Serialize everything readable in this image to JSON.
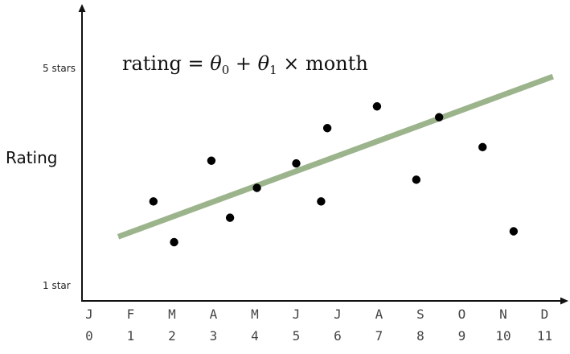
{
  "chart_data": {
    "type": "scatter",
    "title": "",
    "equation": {
      "prefix": "rating = ",
      "theta": "θ",
      "sub0": "0",
      "plus": " + ",
      "sub1": "1",
      "suffix": " × month"
    },
    "ylabel": "Rating",
    "xlabel": "",
    "y_ticks": [
      {
        "label": "1 star",
        "value": 1
      },
      {
        "label": "5 stars",
        "value": 5
      }
    ],
    "x_ticks": [
      {
        "month": "J",
        "index": "0"
      },
      {
        "month": "F",
        "index": "1"
      },
      {
        "month": "M",
        "index": "2"
      },
      {
        "month": "A",
        "index": "3"
      },
      {
        "month": "M",
        "index": "4"
      },
      {
        "month": "J",
        "index": "5"
      },
      {
        "month": "J",
        "index": "6"
      },
      {
        "month": "A",
        "index": "7"
      },
      {
        "month": "S",
        "index": "8"
      },
      {
        "month": "O",
        "index": "9"
      },
      {
        "month": "N",
        "index": "10"
      },
      {
        "month": "D",
        "index": "11"
      }
    ],
    "xlim": [
      0,
      11
    ],
    "ylim": [
      0.65,
      5.6
    ],
    "points": [
      {
        "x": 1.55,
        "y": 2.55
      },
      {
        "x": 2.05,
        "y": 1.8
      },
      {
        "x": 2.95,
        "y": 3.3
      },
      {
        "x": 3.4,
        "y": 2.25
      },
      {
        "x": 4.05,
        "y": 2.8
      },
      {
        "x": 5.0,
        "y": 3.25
      },
      {
        "x": 5.6,
        "y": 2.55
      },
      {
        "x": 5.75,
        "y": 3.9
      },
      {
        "x": 6.95,
        "y": 4.3
      },
      {
        "x": 7.9,
        "y": 2.95
      },
      {
        "x": 8.45,
        "y": 4.1
      },
      {
        "x": 9.5,
        "y": 3.55
      },
      {
        "x": 10.25,
        "y": 2.0
      }
    ],
    "fit_line": {
      "x": [
        0.7,
        11.2
      ],
      "y": [
        1.9,
        4.85
      ],
      "color": "#9cb48c"
    },
    "point_color": "#000000",
    "grid": false
  }
}
